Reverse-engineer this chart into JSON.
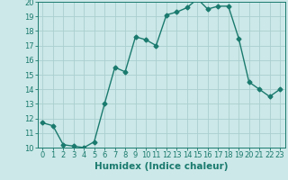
{
  "xlabel": "Humidex (Indice chaleur)",
  "x": [
    0,
    1,
    2,
    3,
    4,
    5,
    6,
    7,
    8,
    9,
    10,
    11,
    12,
    13,
    14,
    15,
    16,
    17,
    18,
    19,
    20,
    21,
    22,
    23
  ],
  "y": [
    11.7,
    11.5,
    10.2,
    10.1,
    10.0,
    10.4,
    13.0,
    15.5,
    15.2,
    17.6,
    17.4,
    17.0,
    19.1,
    19.3,
    19.6,
    20.2,
    19.5,
    19.7,
    19.7,
    17.5,
    14.5,
    14.0,
    13.5,
    14.0
  ],
  "line_color": "#1a7a6e",
  "marker": "D",
  "marker_size": 2.5,
  "bg_color": "#cce8e8",
  "grid_color": "#aacece",
  "ylim": [
    10,
    20
  ],
  "xlim_min": -0.5,
  "xlim_max": 23.5,
  "yticks": [
    10,
    11,
    12,
    13,
    14,
    15,
    16,
    17,
    18,
    19,
    20
  ],
  "xticks": [
    0,
    1,
    2,
    3,
    4,
    5,
    6,
    7,
    8,
    9,
    10,
    11,
    12,
    13,
    14,
    15,
    16,
    17,
    18,
    19,
    20,
    21,
    22,
    23
  ],
  "tick_color": "#1a7a6e",
  "label_color": "#1a7a6e",
  "spine_color": "#1a7a6e",
  "xlabel_fontsize": 7.5,
  "tick_fontsize": 6,
  "linewidth": 1.0
}
